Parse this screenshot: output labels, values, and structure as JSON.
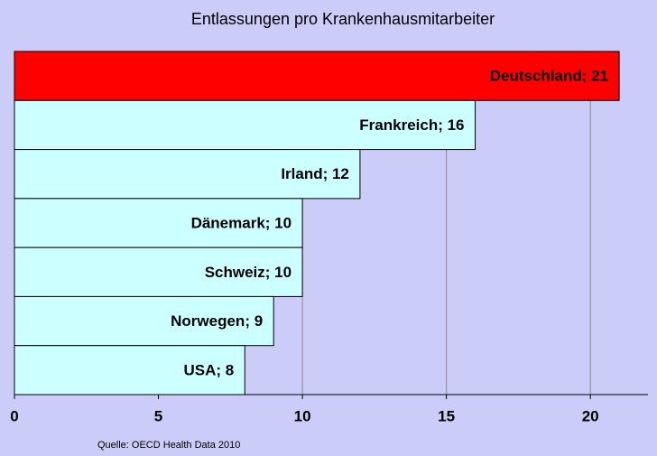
{
  "chart_data": {
    "type": "hbar",
    "title": "Entlassungen pro Krankenhausmitarbeiter",
    "values": [
      21,
      16,
      12,
      10,
      10,
      9,
      8
    ],
    "value_labels": [
      "Deutschland; 21",
      "Frankreich; 16",
      "Irland; 12",
      "Dänemark; 10",
      "Schweiz; 10",
      "Norwegen; 9",
      "USA; 8"
    ],
    "colors": [
      "#ff0000",
      "#ccffff",
      "#ccffff",
      "#ccffff",
      "#ccffff",
      "#ccffff",
      "#ccffff"
    ],
    "xlim": [
      0,
      22
    ],
    "xticks": [
      0,
      5,
      10,
      15,
      20
    ],
    "grid": true,
    "source": "Quelle: OECD Health Data 2010"
  }
}
